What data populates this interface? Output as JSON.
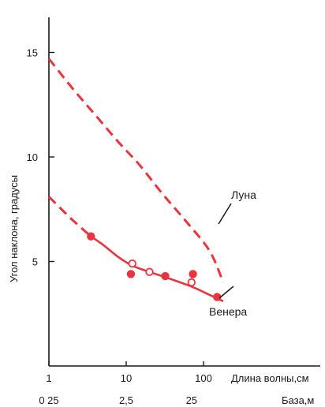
{
  "chart_data": {
    "type": "line",
    "xlabel": "Длина волны,см",
    "x2label": "База,м",
    "ylabel": "Угол наклона, градусы",
    "xscale": "log",
    "xlim": [
      1,
      200
    ],
    "ylim": [
      0,
      17
    ],
    "xticks": [
      {
        "value": 1,
        "label": "1"
      },
      {
        "value": 10,
        "label": "10"
      },
      {
        "value": 100,
        "label": "100"
      }
    ],
    "x2ticks": [
      {
        "value": 1,
        "label": "0 25"
      },
      {
        "value": 10,
        "label": "2,5"
      },
      {
        "value": 70,
        "label": "25"
      }
    ],
    "yticks": [
      {
        "value": 5,
        "label": "5"
      },
      {
        "value": 10,
        "label": "10"
      },
      {
        "value": 15,
        "label": "15"
      }
    ],
    "grid": false,
    "colors": {
      "series": "#e8353f",
      "axis": "#1a1a1a"
    },
    "series": [
      {
        "name": "Луна",
        "style": "dashed",
        "x": [
          1,
          2,
          4,
          8,
          15,
          30,
          60,
          120,
          180
        ],
        "y": [
          14.7,
          13.3,
          12.0,
          10.7,
          9.6,
          8.2,
          6.9,
          5.5,
          4.0
        ]
      },
      {
        "name": "Венера",
        "style": "dashed-then-solid",
        "x": [
          1,
          2,
          3.5,
          5,
          8,
          12,
          20,
          35,
          70,
          120,
          180
        ],
        "y": [
          8.1,
          7.0,
          6.2,
          5.8,
          5.2,
          4.8,
          4.5,
          4.2,
          3.8,
          3.4,
          3.1
        ],
        "solid_from_x": 3.5
      }
    ],
    "points": [
      {
        "x": 3.5,
        "y": 6.2,
        "filled": true
      },
      {
        "x": 11.5,
        "y": 4.4,
        "filled": true
      },
      {
        "x": 12,
        "y": 4.9,
        "filled": false
      },
      {
        "x": 20,
        "y": 4.5,
        "filled": false
      },
      {
        "x": 32,
        "y": 4.3,
        "filled": true
      },
      {
        "x": 70,
        "y": 4.0,
        "filled": false
      },
      {
        "x": 73,
        "y": 4.4,
        "filled": true
      },
      {
        "x": 150,
        "y": 3.3,
        "filled": true
      }
    ]
  }
}
